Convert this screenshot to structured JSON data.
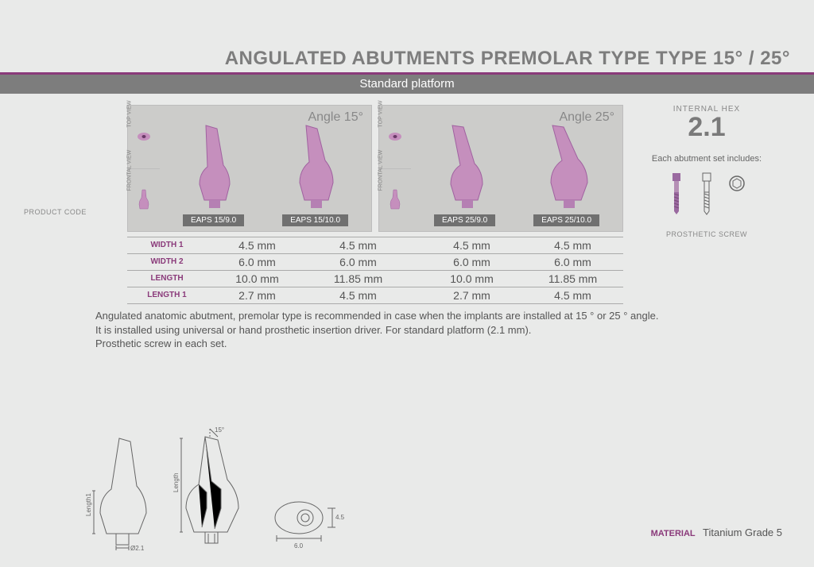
{
  "title": "ANGULATED ABUTMENTS PREMOLAR TYPE TYPE 15° / 25°",
  "subtitle": "Standard platform",
  "product_code_label": "PRODUCT CODE",
  "internal_hex_label": "INTERNAL HEX",
  "internal_hex_value": "2.1",
  "includes_text": "Each abutment set includes:",
  "prosthetic_screw_label": "PROSTHETIC SCREW",
  "panels": [
    {
      "angle_label": "Angle 15°",
      "codes": [
        "EAPS 15/9.0",
        "EAPS 15/10.0"
      ]
    },
    {
      "angle_label": "Angle 25°",
      "codes": [
        "EAPS 25/9.0",
        "EAPS 25/10.0"
      ]
    }
  ],
  "view_labels": {
    "top": "TOP VIEW",
    "frontal": "FRONTAL VIEW"
  },
  "spec_rows": [
    {
      "label": "WIDTH 1",
      "vals": [
        "4.5 mm",
        "4.5 mm",
        "4.5 mm",
        "4.5 mm"
      ]
    },
    {
      "label": "WIDTH 2",
      "vals": [
        "6.0 mm",
        "6.0 mm",
        "6.0 mm",
        "6.0 mm"
      ]
    },
    {
      "label": "LENGTH",
      "vals": [
        "10.0 mm",
        "11.85 mm",
        "10.0 mm",
        "11.85 mm"
      ]
    },
    {
      "label": "LENGTH 1",
      "vals": [
        "2.7 mm",
        "4.5 mm",
        "2.7 mm",
        "4.5 mm"
      ]
    }
  ],
  "description": "Angulated anatomic abutment, premolar type is recommended in case when the implants are installed at 15 ° or 25 ° angle.\nIt is installed using universal or hand prosthetic insertion driver. For standard platform (2.1 mm).\nProsthetic screw in each set.",
  "diagram_labels": {
    "angle": "15°",
    "length": "Length",
    "length1": "Length1",
    "w45": "4.5",
    "w60": "6.0",
    "d21": "Ø2.1"
  },
  "material_label": "MATERIAL",
  "material_value": "Titanium Grade 5",
  "colors": {
    "accent": "#8a3a7a",
    "abutment_fill": "#c58fbd",
    "abutment_dark": "#a062a0"
  }
}
